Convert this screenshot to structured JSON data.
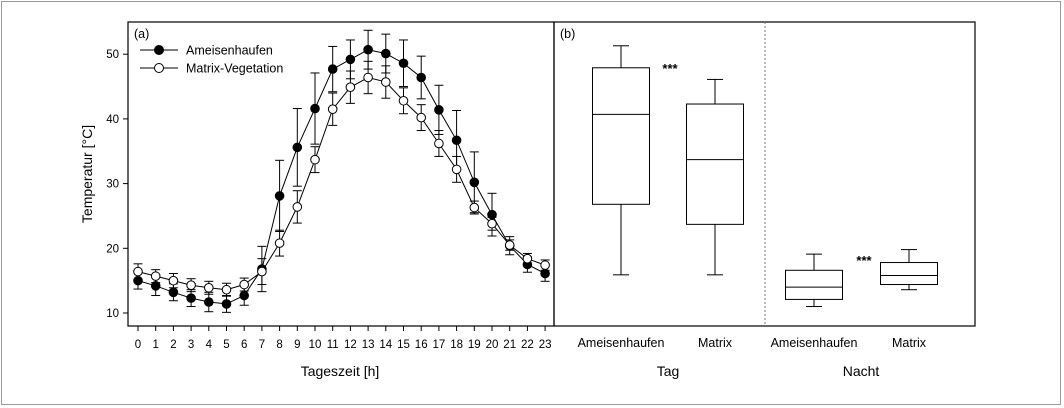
{
  "chart_data": [
    {
      "panel_label": "(a)",
      "type": "line",
      "xlabel": "Tageszeit [h]",
      "ylabel": "Temperatur [°C]",
      "x": [
        0,
        1,
        2,
        3,
        4,
        5,
        6,
        7,
        8,
        9,
        10,
        11,
        12,
        13,
        14,
        15,
        16,
        17,
        18,
        19,
        20,
        21,
        22,
        23
      ],
      "xlim": [
        -0.5,
        23.4
      ],
      "ylim": [
        8,
        55
      ],
      "yticks": [
        10,
        20,
        30,
        40,
        50
      ],
      "grid": false,
      "legend_position": "top-left",
      "series": [
        {
          "name": "Ameisenhaufen",
          "marker": "filled-circle",
          "color": "#000000",
          "values": [
            15.0,
            14.2,
            13.2,
            12.3,
            11.7,
            11.4,
            12.7,
            16.8,
            28.1,
            35.6,
            41.6,
            47.7,
            49.2,
            50.7,
            50.1,
            48.6,
            46.4,
            41.4,
            36.7,
            30.2,
            25.2,
            20.4,
            17.5,
            16.1
          ],
          "error": [
            1.3,
            1.5,
            1.3,
            1.3,
            1.5,
            1.3,
            1.5,
            3.5,
            5.5,
            6.0,
            5.5,
            3.5,
            3.0,
            3.0,
            3.0,
            3.6,
            3.3,
            3.8,
            4.6,
            4.7,
            3.3,
            1.4,
            1.2,
            1.2
          ]
        },
        {
          "name": "Matrix-Vegetation",
          "marker": "open-circle",
          "color": "#000000",
          "values": [
            16.4,
            15.7,
            15.0,
            14.3,
            13.9,
            13.6,
            14.4,
            16.4,
            20.8,
            26.4,
            33.7,
            41.5,
            44.9,
            46.4,
            45.7,
            42.8,
            40.2,
            36.2,
            32.2,
            26.3,
            23.8,
            20.5,
            18.4,
            17.4
          ],
          "error": [
            1.2,
            1.0,
            1.1,
            1.0,
            1.0,
            1.0,
            1.0,
            2.0,
            2.0,
            2.5,
            2.0,
            2.5,
            2.5,
            2.5,
            2.5,
            2.0,
            2.0,
            2.0,
            2.0,
            1.0,
            1.0,
            0.8,
            0.8,
            0.8
          ]
        }
      ]
    },
    {
      "panel_label": "(b)",
      "type": "box",
      "ylim": [
        8,
        55
      ],
      "groups": [
        {
          "label": "Tag",
          "boxes": [
            {
              "label": "Ameisenhaufen",
              "whisker_low": 15.9,
              "q1": 26.8,
              "median": 40.7,
              "q3": 47.9,
              "whisker_high": 51.3
            },
            {
              "label": "Matrix",
              "whisker_low": 15.9,
              "q1": 23.7,
              "median": 33.7,
              "q3": 42.3,
              "whisker_high": 46.1
            }
          ],
          "significance": "***"
        },
        {
          "label": "Nacht",
          "boxes": [
            {
              "label": "Ameisenhaufen",
              "whisker_low": 11.0,
              "q1": 12.1,
              "median": 14.0,
              "q3": 16.6,
              "whisker_high": 19.1
            },
            {
              "label": "Matrix",
              "whisker_low": 13.6,
              "q1": 14.4,
              "median": 15.8,
              "q3": 17.8,
              "whisker_high": 19.8
            }
          ],
          "significance": "***"
        }
      ]
    }
  ]
}
